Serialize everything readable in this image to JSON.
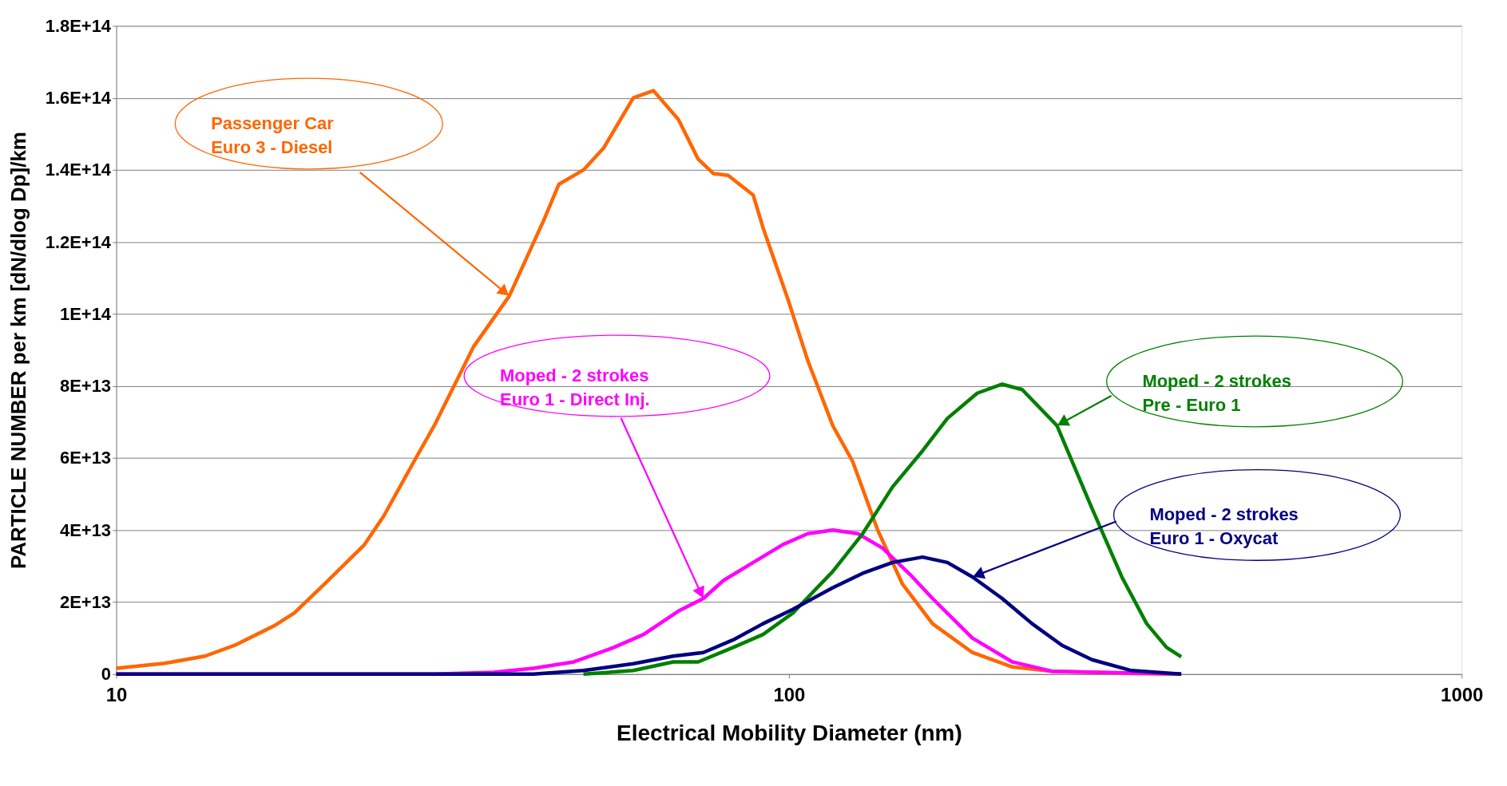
{
  "chart_data": {
    "type": "line",
    "xlabel": "Electrical Mobility Diameter (nm)",
    "ylabel": "PARTICLE NUMBER per km [dN/dlog Dp]/km",
    "log": "x",
    "xlim": [
      10,
      1000
    ],
    "xticks": [
      10,
      100,
      1000
    ],
    "ylim": [
      0,
      180000000000000.0
    ],
    "yticks": [
      0,
      {
        "value": 20000000000000.0,
        "label": "2E+13"
      },
      {
        "value": 40000000000000.0,
        "label": "4E+13"
      },
      {
        "value": 60000000000000.0,
        "label": "6E+13"
      },
      {
        "value": 80000000000000.0,
        "label": "8E+13"
      },
      {
        "value": 100000000000000.0,
        "label": "1E+14"
      },
      {
        "value": 120000000000000.0,
        "label": "1.2E+14"
      },
      {
        "value": 140000000000000.0,
        "label": "1.4E+14"
      },
      {
        "value": 160000000000000.0,
        "label": "1.6E+14"
      },
      {
        "value": 180000000000000.0,
        "label": "1.8E+14"
      }
    ],
    "grid": "y",
    "marker": "none",
    "line_style": "solid",
    "series": [
      {
        "name": "Passenger Car\nEuro 3 - Diesel",
        "color": "#ff6600",
        "x": [
          10,
          11.8,
          13.55,
          15.0,
          17.2,
          18.4,
          20.4,
          23.4,
          25.0,
          27.7,
          29.7,
          34.0,
          38.4,
          43.2,
          45.5,
          49.5,
          53.0,
          58.7,
          62.9,
          68.5,
          73.3,
          77.2,
          81.2,
          88.5,
          91.5,
          99.7,
          106.7,
          116.2,
          124.4,
          135.5,
          147.5,
          163.5,
          187.4,
          214.8,
          246,
          323,
          383
        ],
        "values": [
          1600000000000.0,
          3000000000000.0,
          5000000000000.0,
          8000000000000.0,
          13500000000000.0,
          17000000000000.0,
          25000000000000.0,
          36000000000000.0,
          44000000000000.0,
          59000000000000.0,
          69000000000000.0,
          91000000000000.0,
          105000000000000.0,
          126000000000000.0,
          136000000000000.0,
          140000000000000.0,
          146000000000000.0,
          160000000000000.0,
          162000000000000.0,
          154000000000000.0,
          143000000000000.0,
          139000000000000.0,
          138500000000000.0,
          133000000000000.0,
          124000000000000.0,
          104000000000000.0,
          87000000000000.0,
          69000000000000.0,
          59000000000000.0,
          40000000000000.0,
          25000000000000.0,
          14000000000000.0,
          6000000000000.0,
          2000000000000.0,
          800000000000.0,
          200000000000.0,
          0
        ]
      },
      {
        "name": "Moped - 2 strokes\nEuro 1 - Direct Inj.",
        "color": "#ff00ff",
        "x": [
          10,
          29.7,
          36.4,
          41.7,
          47.9,
          54.9,
          60.8,
          68.5,
          74.6,
          79.9,
          88.5,
          98,
          106.7,
          116.2,
          126.6,
          137.8,
          152.6,
          163.5,
          187.4,
          214.8,
          246,
          383
        ],
        "values": [
          0,
          0,
          500000000000.0,
          1600000000000.0,
          3400000000000.0,
          7400000000000.0,
          11000000000000.0,
          17500000000000.0,
          21000000000000.0,
          26000000000000.0,
          31000000000000.0,
          36000000000000.0,
          39000000000000.0,
          40000000000000.0,
          39000000000000.0,
          35000000000000.0,
          27000000000000.0,
          21000000000000.0,
          10000000000000.0,
          3400000000000.0,
          800000000000.0,
          0
        ]
      },
      {
        "name": "Moped - 2 strokes\nPre - Euro 1",
        "color": "#008000",
        "x": [
          49.5,
          58.7,
          67.3,
          73.3,
          82.6,
          91.5,
          101.4,
          116.2,
          128.7,
          142.6,
          158,
          172,
          190.5,
          207.5,
          222.2,
          250.3,
          282.2,
          312.5,
          340.3,
          364.3,
          383
        ],
        "values": [
          0,
          1000000000000.0,
          3400000000000.0,
          3400000000000.0,
          7400000000000.0,
          11000000000000.0,
          17000000000000.0,
          28500000000000.0,
          39000000000000.0,
          52000000000000.0,
          62000000000000.0,
          71000000000000.0,
          78000000000000.0,
          80500000000000.0,
          79000000000000.0,
          69000000000000.0,
          46000000000000.0,
          27000000000000.0,
          14000000000000.0,
          7400000000000.0,
          4800000000000.0
        ]
      },
      {
        "name": "Moped - 2 strokes\nEuro 1 - Oxycat",
        "color": "#000080",
        "x": [
          10,
          41.7,
          49.5,
          58.7,
          67.3,
          74.6,
          82.6,
          91.5,
          101.4,
          116.2,
          128.7,
          142.6,
          158,
          172,
          187.4,
          207.5,
          229.9,
          254.7,
          282.2,
          323,
          383
        ],
        "values": [
          0,
          0,
          1000000000000.0,
          2900000000000.0,
          5000000000000.0,
          6000000000000.0,
          9500000000000.0,
          14000000000000.0,
          18000000000000.0,
          24000000000000.0,
          28000000000000.0,
          31000000000000.0,
          32500000000000.0,
          31000000000000.0,
          27000000000000.0,
          21000000000000.0,
          14000000000000.0,
          8000000000000.0,
          4000000000000.0,
          1000000000000.0,
          0
        ]
      }
    ]
  }
}
